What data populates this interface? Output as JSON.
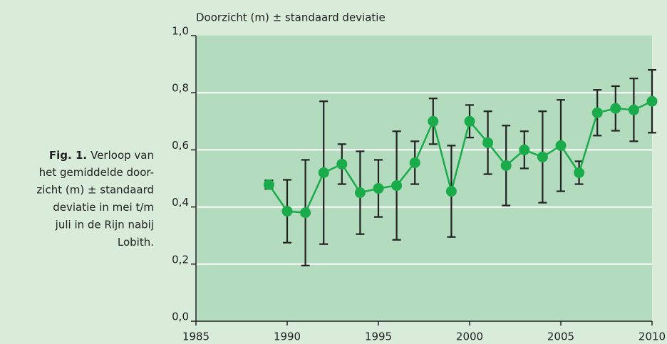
{
  "chart_data": {
    "type": "errorbar-line",
    "ylabel": "Doorzicht (m) ± standaard deviatie",
    "caption": {
      "label": "Fig. 1.",
      "lines": [
        "Verloop van",
        "het gemiddelde door-",
        "zicht (m) ± standaard",
        "deviatie in mei t/m",
        "juli in de Rijn nabij",
        "Lobith."
      ]
    },
    "xlim": [
      1985,
      2010
    ],
    "xticks": [
      1985,
      1990,
      1995,
      2000,
      2005,
      2010
    ],
    "ylim": [
      0,
      1
    ],
    "yticks": [
      {
        "value": 0,
        "label": "0,0"
      },
      {
        "value": 0.2,
        "label": "0,2"
      },
      {
        "value": 0.4,
        "label": "0,4"
      },
      {
        "value": 0.6,
        "label": "0,6"
      },
      {
        "value": 0.8,
        "label": "0,8"
      },
      {
        "value": 1,
        "label": "1,0"
      }
    ],
    "grid": true,
    "color": "#1aab4a",
    "error_color": "#222222",
    "x": [
      1989,
      1990,
      1991,
      1992,
      1993,
      1994,
      1995,
      1996,
      1997,
      1998,
      1999,
      2000,
      2001,
      2002,
      2003,
      2004,
      2005,
      2006,
      2007,
      2008,
      2009,
      2010
    ],
    "values": [
      0.478,
      0.385,
      0.38,
      0.52,
      0.55,
      0.45,
      0.465,
      0.475,
      0.555,
      0.7,
      0.455,
      0.7,
      0.625,
      0.545,
      0.6,
      0.575,
      0.615,
      0.52,
      0.73,
      0.745,
      0.74,
      0.77
    ],
    "errors": [
      0.015,
      0.11,
      0.185,
      0.25,
      0.07,
      0.145,
      0.1,
      0.19,
      0.075,
      0.08,
      0.16,
      0.057,
      0.11,
      0.14,
      0.065,
      0.16,
      0.16,
      0.04,
      0.08,
      0.078,
      0.11,
      0.11
    ]
  }
}
